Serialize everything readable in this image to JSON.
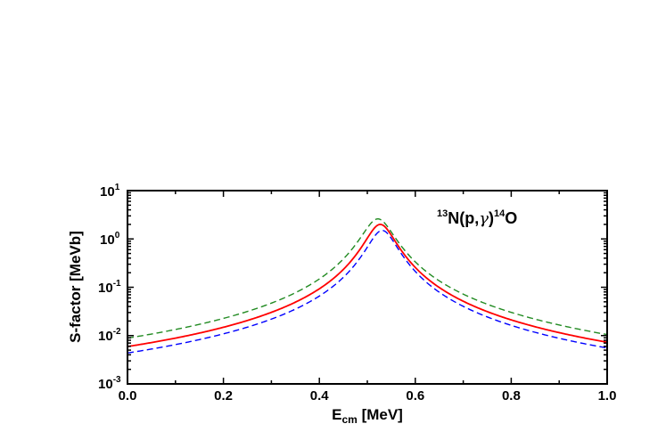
{
  "chart_data": {
    "type": "line",
    "annotation": {
      "pre": "13",
      "main1": "N(p,",
      "greek": "γ",
      "main2": ")",
      "sup2": "14",
      "main3": "O"
    },
    "xlabel": {
      "main": "E",
      "sub": "cm",
      "rest": " [MeV]"
    },
    "ylabel": "S-factor [MeVb]",
    "xlim": [
      0.0,
      1.0
    ],
    "ylim": [
      0.001,
      10
    ],
    "y_scale": "log",
    "x_ticks": [
      "0.0",
      "0.2",
      "0.4",
      "0.6",
      "0.8",
      "1.0"
    ],
    "y_ticks": [
      {
        "base": "10",
        "exp": "1"
      },
      {
        "base": "10",
        "exp": "0"
      },
      {
        "base": "10",
        "exp": "-1"
      },
      {
        "base": "10",
        "exp": "-2"
      },
      {
        "base": "10",
        "exp": "-3"
      }
    ],
    "series": [
      {
        "color": "#228b22",
        "dash": "dashed",
        "peak_x": 0.522,
        "peak_y": 2.6,
        "width": 0.03,
        "floor": 0.0003
      },
      {
        "color": "#ff0000",
        "dash": "solid",
        "peak_x": 0.527,
        "peak_y": 2.0,
        "width": 0.028,
        "floor": 0.0003
      },
      {
        "color": "#0000ff",
        "dash": "dashed",
        "peak_x": 0.531,
        "peak_y": 1.5,
        "width": 0.028,
        "floor": 0.0002
      }
    ]
  }
}
